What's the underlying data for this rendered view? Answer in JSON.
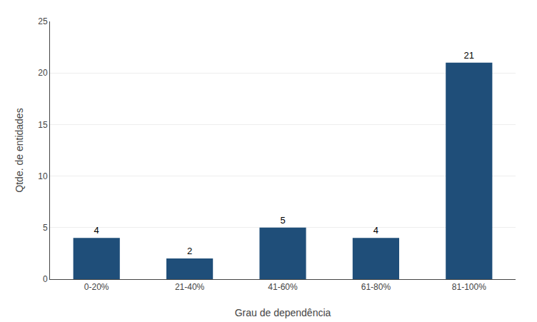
{
  "chart_data": {
    "type": "bar",
    "categories": [
      "0-20%",
      "21-40%",
      "41-60%",
      "61-80%",
      "81-100%"
    ],
    "values": [
      4,
      2,
      5,
      4,
      21
    ],
    "color": "#1f4e79",
    "xlabel": "Grau de dependência",
    "ylabel": "Qtde. de entidades",
    "ylim": [
      0,
      25
    ],
    "yticks": [
      0,
      5,
      10,
      15,
      20,
      25
    ],
    "grid": true,
    "data_labels": true
  }
}
